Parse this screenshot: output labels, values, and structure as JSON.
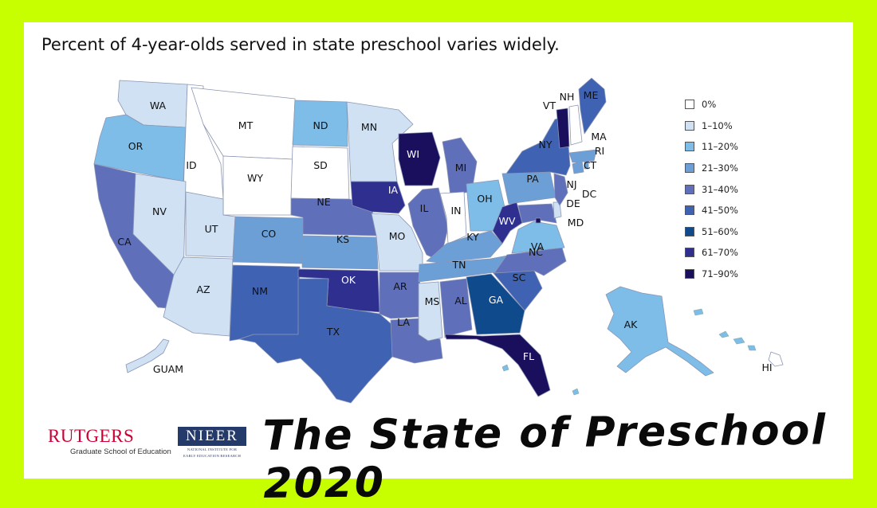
{
  "headline": "Percent of 4-year-olds served in state preschool varies widely.",
  "legend": [
    {
      "label": "0%",
      "color": "#ffffff"
    },
    {
      "label": "1–10%",
      "color": "#cfe1f3"
    },
    {
      "label": "11–20%",
      "color": "#7dbde8"
    },
    {
      "label": "21–30%",
      "color": "#6c9fd6"
    },
    {
      "label": "31–40%",
      "color": "#5f6fb9"
    },
    {
      "label": "41–50%",
      "color": "#3f62b2"
    },
    {
      "label": "51–60%",
      "color": "#0f4a8c"
    },
    {
      "label": "61–70%",
      "color": "#2e2f8f"
    },
    {
      "label": "71–90%",
      "color": "#1a0f5c"
    }
  ],
  "states": [
    {
      "abbr": "WA",
      "bin": 1
    },
    {
      "abbr": "OR",
      "bin": 2
    },
    {
      "abbr": "CA",
      "bin": 4
    },
    {
      "abbr": "ID",
      "bin": 0
    },
    {
      "abbr": "NV",
      "bin": 1
    },
    {
      "abbr": "MT",
      "bin": 0
    },
    {
      "abbr": "WY",
      "bin": 0
    },
    {
      "abbr": "UT",
      "bin": 1
    },
    {
      "abbr": "AZ",
      "bin": 1
    },
    {
      "abbr": "CO",
      "bin": 3
    },
    {
      "abbr": "NM",
      "bin": 5
    },
    {
      "abbr": "ND",
      "bin": 2
    },
    {
      "abbr": "SD",
      "bin": 0
    },
    {
      "abbr": "NE",
      "bin": 4
    },
    {
      "abbr": "KS",
      "bin": 3
    },
    {
      "abbr": "OK",
      "bin": 7
    },
    {
      "abbr": "TX",
      "bin": 5
    },
    {
      "abbr": "MN",
      "bin": 1
    },
    {
      "abbr": "IA",
      "bin": 7
    },
    {
      "abbr": "MO",
      "bin": 1
    },
    {
      "abbr": "AR",
      "bin": 4
    },
    {
      "abbr": "LA",
      "bin": 4
    },
    {
      "abbr": "WI",
      "bin": 8
    },
    {
      "abbr": "IL",
      "bin": 4
    },
    {
      "abbr": "MI",
      "bin": 4
    },
    {
      "abbr": "IN",
      "bin": 0
    },
    {
      "abbr": "OH",
      "bin": 2
    },
    {
      "abbr": "KY",
      "bin": 3
    },
    {
      "abbr": "TN",
      "bin": 3
    },
    {
      "abbr": "MS",
      "bin": 1
    },
    {
      "abbr": "AL",
      "bin": 4
    },
    {
      "abbr": "GA",
      "bin": 6
    },
    {
      "abbr": "FL",
      "bin": 8
    },
    {
      "abbr": "SC",
      "bin": 5
    },
    {
      "abbr": "NC",
      "bin": 4
    },
    {
      "abbr": "VA",
      "bin": 2
    },
    {
      "abbr": "WV",
      "bin": 7
    },
    {
      "abbr": "MD",
      "bin": 4
    },
    {
      "abbr": "DE",
      "bin": 1
    },
    {
      "abbr": "DC",
      "bin": 8
    },
    {
      "abbr": "PA",
      "bin": 3
    },
    {
      "abbr": "NJ",
      "bin": 4
    },
    {
      "abbr": "NY",
      "bin": 5
    },
    {
      "abbr": "CT",
      "bin": 3
    },
    {
      "abbr": "RI",
      "bin": 3
    },
    {
      "abbr": "MA",
      "bin": 3
    },
    {
      "abbr": "VT",
      "bin": 8
    },
    {
      "abbr": "NH",
      "bin": 0
    },
    {
      "abbr": "ME",
      "bin": 5
    },
    {
      "abbr": "AK",
      "bin": 2
    },
    {
      "abbr": "HI",
      "bin": 0
    },
    {
      "abbr": "GUAM",
      "bin": 1
    }
  ],
  "logos": {
    "rutgers_name": "RUTGERS",
    "rutgers_sub": "Graduate School of Education",
    "nieer_name": "NIEER",
    "nieer_sub_1": "NATIONAL INSTITUTE FOR",
    "nieer_sub_2": "EARLY EDUCATION RESEARCH"
  },
  "report_title": "The State of Preschool 2020"
}
